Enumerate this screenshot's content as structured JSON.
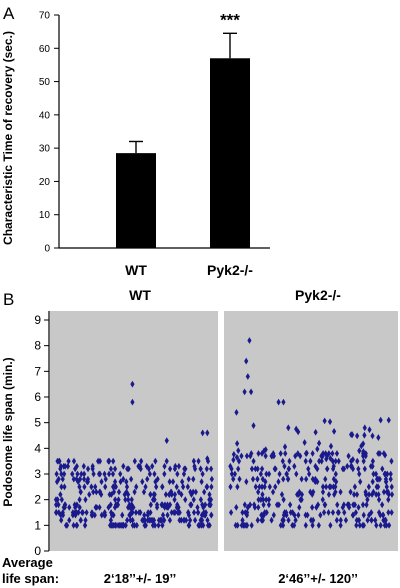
{
  "chart_data": [
    {
      "panel": "A",
      "type": "bar",
      "ylabel": "Characteristic Time of recovery (sec.)",
      "ylim": [
        0,
        70
      ],
      "yticks": [
        0,
        10,
        20,
        30,
        40,
        50,
        60,
        70
      ],
      "categories": [
        "WT",
        "Pyk2-/-"
      ],
      "values": [
        28.5,
        57
      ],
      "errors": [
        3.5,
        7.5
      ],
      "significance": [
        "",
        "***"
      ],
      "bar_color": "#000000"
    },
    {
      "panel": "B",
      "type": "scatter",
      "ylabel": "Podosome life span (min.)",
      "ylim": [
        0,
        9
      ],
      "yticks": [
        0,
        1,
        2,
        3,
        4,
        5,
        6,
        7,
        8,
        9
      ],
      "background": "#c8c8c8",
      "marker_color": "#1a1a8c",
      "series": [
        {
          "panel_title": "WT",
          "average_label": "2‘18’’+/- 19’’",
          "seed": 7,
          "count": 360,
          "highlights": [
            [
              0.0,
              2.0
            ],
            [
              0.01,
              2.0
            ],
            [
              0.05,
              1.7
            ],
            [
              0.49,
              6.5
            ],
            [
              0.49,
              5.8
            ],
            [
              0.71,
              4.3
            ],
            [
              0.94,
              4.6
            ],
            [
              0.97,
              4.6
            ],
            [
              0.97,
              3.6
            ]
          ]
        },
        {
          "panel_title": "Pyk2-/-",
          "average_label": "2‘46’’+/- 120’’",
          "seed": 13,
          "count": 350,
          "highlights": [
            [
              0.12,
              8.2
            ],
            [
              0.1,
              7.4
            ],
            [
              0.11,
              6.8
            ],
            [
              0.09,
              6.2
            ],
            [
              0.13,
              6.2
            ],
            [
              0.04,
              5.4
            ],
            [
              0.3,
              5.8
            ],
            [
              0.33,
              5.8
            ],
            [
              0.36,
              4.8
            ],
            [
              0.55,
              4.2
            ],
            [
              0.93,
              5.1
            ],
            [
              0.98,
              5.1
            ],
            [
              0.95,
              3.8
            ]
          ]
        }
      ],
      "footer_label": [
        "Average",
        "life span:"
      ]
    }
  ]
}
